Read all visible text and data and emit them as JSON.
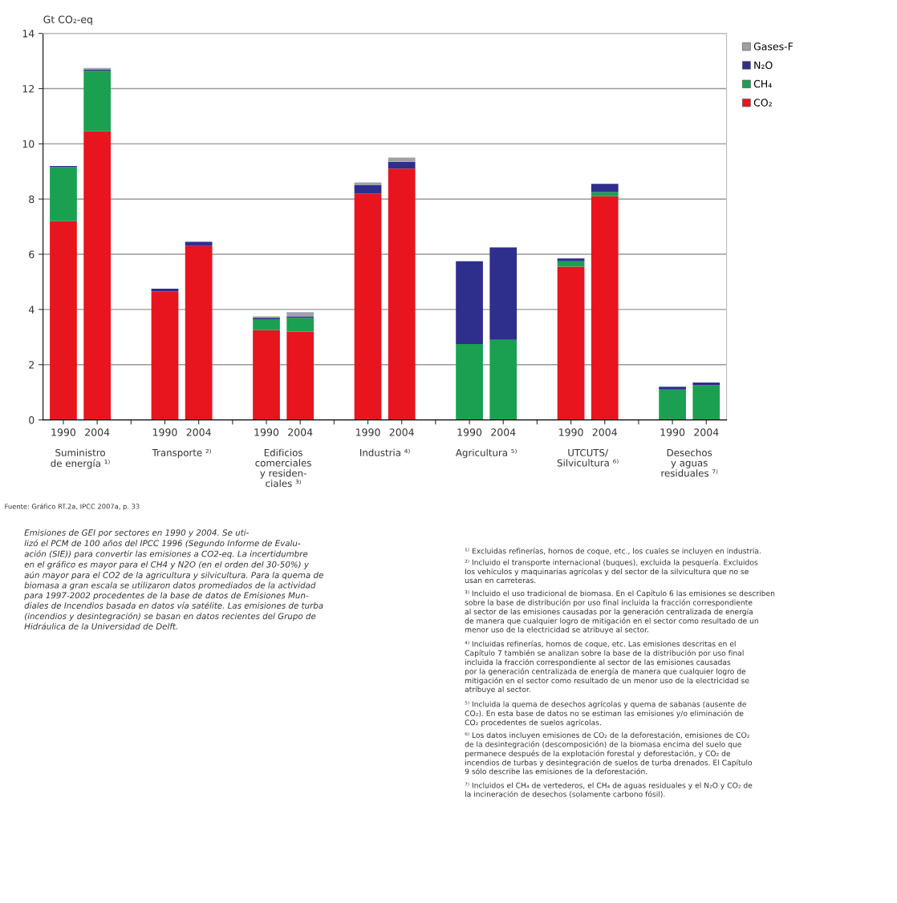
{
  "chart_data": {
    "type": "bar",
    "stacked": true,
    "ylabel": "Gt CO₂-eq",
    "categories": [
      "1990",
      "2004",
      null,
      "1990",
      "2004",
      null,
      "1990",
      "2004",
      null,
      "1990",
      "2004",
      null,
      "1990",
      "2004",
      null,
      "1990",
      "2004",
      null,
      "1990",
      "2004"
    ],
    "series": [
      {
        "name": "CO₂",
        "color": "#e8141e",
        "values": [
          7.2,
          10.45,
          null,
          4.65,
          6.3,
          null,
          3.25,
          3.2,
          null,
          8.2,
          9.1,
          null,
          0,
          0,
          null,
          5.55,
          8.1,
          null,
          0,
          0
        ]
      },
      {
        "name": "CH₄",
        "color": "#1aa050",
        "values": [
          1.95,
          2.2,
          null,
          0,
          0,
          null,
          0.4,
          0.5,
          null,
          0,
          0,
          null,
          2.75,
          2.9,
          null,
          0.2,
          0.15,
          null,
          1.1,
          1.25
        ]
      },
      {
        "name": "N₂O",
        "color": "#2e2e8c",
        "values": [
          0.05,
          0.05,
          null,
          0.1,
          0.15,
          null,
          0.05,
          0.05,
          null,
          0.3,
          0.25,
          null,
          3.0,
          3.35,
          null,
          0.1,
          0.3,
          null,
          0.1,
          0.1
        ]
      },
      {
        "name": "Gases-F",
        "color": "#a0a0a8",
        "values": [
          0,
          0.05,
          null,
          0,
          0,
          null,
          0.05,
          0.15,
          null,
          0.1,
          0.15,
          null,
          0,
          0,
          null,
          0,
          0,
          null,
          0,
          0
        ]
      }
    ],
    "ylim": [
      0,
      14
    ],
    "yticks": [
      0,
      2,
      4,
      6,
      8,
      10,
      12,
      14
    ],
    "grid": "y",
    "legend": "top right",
    "annotations": [
      "Suministro\nde energía ¹⁾",
      "Transporte ²⁾",
      "Edificios\ncomerciales\ny residen-\nciales ³⁾",
      "Industria ⁴⁾",
      "Agricultura ⁵⁾",
      "UTCUTS/\nSilvicultura ⁶⁾",
      "Desechos\ny aguas\nresiduales ⁷⁾",
      "Fuente: Gráfico RT.2a, IPCC 2007a, p. 33",
      "Emisiones de GEI por sectores en 1990 y 2004. Se uti-\nlizó el PCM de 100 años del IPCC 1996 (Segundo Informe de Evalu-\nación (SIE)) para convertir las emisiones a CO2-eq. La incertidumbre\nen el gráfico es mayor para el CH4 y N2O (en el orden del 30-50%) y\naún mayor para el CO2 de la agricultura y silvicultura. Para la quema de\nbiomasa a gran escala se utilizaron datos promediados de la actividad\npara 1997-2002 procedentes de la base de datos de Emisiones Mun-\ndiales de Incendios basada en datos vía satélite. Las emisiones de turba\n(incendios y desintegración) se basan en datos recientes del Grupo de\nHidráulica de la Universidad de Delft.",
      "¹⁾ Excluidas refinerías, hornos de coque, etc., los cuales se incluyen en industria.",
      "²⁾ Incluido el transporte internacional (buques), excluida la pesquería. Excluidos\nlos vehículos y maquinarias agrícolas y del sector de la silvicultura que no se\nusan en carreteras.",
      "³⁾ Incluido el uso tradicional de biomasa. En el Capítulo 6 las emisiones se describen\nsobre la base de distribución por uso final incluida la fracción correspondiente\nal sector de las emisiones causadas por la generación centralizada de energía\nde manera que cualquier logro de mitigación en el sector como resultado de un\nmenor uso de la electricidad se atribuye al sector.",
      "⁴⁾ Incluidas refinerías, hornos de coque, etc. Las emisiones descritas en el\nCapítulo 7 también se analizan sobre la base de la distribución por uso final\nincluida la fracción correspondiente al sector de las emisiones causadas\npor la generación centralizada de energía de manera que cualquier logro de\nmitigación en el sector como resultado de un menor uso de la electricidad se\natribuye al sector.",
      "⁵⁾ Incluida la quema de desechos agrícolas y quema de sabanas (ausente de\nCO₂). En esta base de datos no se estiman las emisiones y/o eliminación de\nCO₂ procedentes de suelos agrícolas.",
      "⁶⁾ Los datos incluyen emisiones de CO₂ de la deforestación, emisiones de CO₂\nde la desintegración (descomposición) de la biomasa encima del suelo que\npermanece después de la explotación forestal y deforestación, y CO₂ de\nincendios de turbas y desintegración de suelos de turba drenados. El Capítulo\n9 sólo describe las emisiones de la deforestación.",
      "⁷⁾ Incluidos el CH₄ de vertederos, el CH₄ de aguas residuales y el N₂O y CO₂ de\nla incineración de desechos (solamente carbono fósil)."
    ]
  }
}
